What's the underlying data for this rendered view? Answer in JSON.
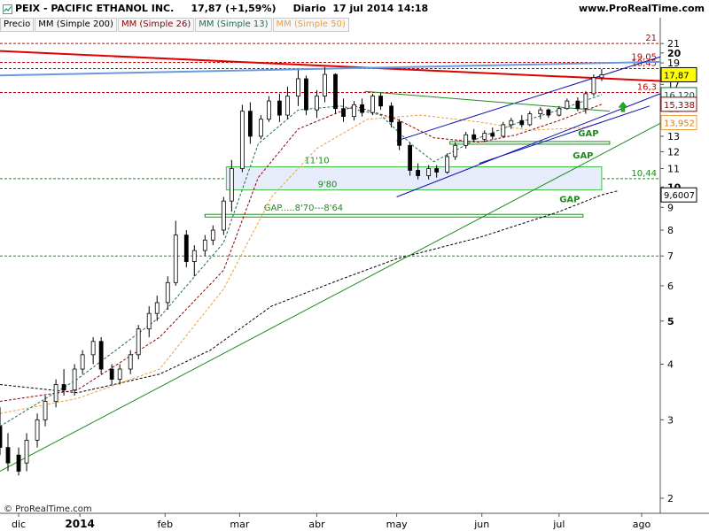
{
  "header": {
    "ticker_line": "PEIX - PACIFIC ETHANOL INC.     17,87 (+1,59%)     Diario  17 jul 2014 14:18",
    "site": "www.ProRealTime.com",
    "copyright": "© ProRealTime.com"
  },
  "legend": [
    {
      "label": "Precio",
      "color": "#000000"
    },
    {
      "label": "MM (Simple 200)",
      "color": "#000000"
    },
    {
      "label": "MM (Simple 26)",
      "color": "#8b0000"
    },
    {
      "label": "MM (Simple 13)",
      "color": "#1f6f4a"
    },
    {
      "label": "MM (Simple 50)",
      "color": "#e8a040"
    }
  ],
  "colors": {
    "candle_up": "#ffffff",
    "candle_down": "#000000",
    "resistance_red": "#e00000",
    "trend_blue": "#6a9ae0",
    "channel_navy": "#1010b0",
    "support_green": "#1e8a1e",
    "gap_green": "#1e8a1e",
    "zone_fill": "#e6ecfa",
    "zone_border": "#44bb44",
    "price_box_bg": "#ffff00",
    "up_arrow": "#22aa22"
  },
  "chart_data": {
    "type": "candlestick",
    "title": "PEIX - PACIFIC ETHANOL INC.",
    "last_price": 17.87,
    "change_pct": "+1,59%",
    "timeframe": "Diario",
    "date": "17 jul 2014 14:18",
    "y_scale": "log",
    "ylim": [
      1.85,
      24
    ],
    "x_range": [
      "2013-12-03",
      "2014-08-08"
    ],
    "x_tick_labels": [
      {
        "date": "2013-12-10",
        "label": "dic"
      },
      {
        "date": "2014-01-02",
        "label": "2014"
      },
      {
        "date": "2014-02-03",
        "label": "feb"
      },
      {
        "date": "2014-03-03",
        "label": "mar"
      },
      {
        "date": "2014-04-01",
        "label": "abr"
      },
      {
        "date": "2014-05-01",
        "label": "may"
      },
      {
        "date": "2014-06-02",
        "label": "jun"
      },
      {
        "date": "2014-07-01",
        "label": "jul"
      },
      {
        "date": "2014-08-01",
        "label": "ago"
      }
    ],
    "y_ticks": [
      2,
      3,
      4,
      5,
      6,
      7,
      8,
      9,
      10,
      11,
      12,
      13,
      14,
      15,
      16,
      17,
      18,
      19,
      20,
      21
    ],
    "y_ticks_bold": [
      5,
      10,
      15,
      20
    ],
    "ma_200": [
      [
        "2013-12-03",
        3.6
      ],
      [
        "2014-01-01",
        3.45
      ],
      [
        "2014-02-01",
        3.8
      ],
      [
        "2014-02-20",
        4.3
      ],
      [
        "2014-03-15",
        5.4
      ],
      [
        "2014-04-10",
        6.2
      ],
      [
        "2014-05-01",
        6.9
      ],
      [
        "2014-06-01",
        7.7
      ],
      [
        "2014-07-01",
        8.8
      ],
      [
        "2014-07-17",
        9.6
      ]
    ],
    "ma_26": [
      [
        "2013-12-03",
        3.3
      ],
      [
        "2014-01-01",
        3.5
      ],
      [
        "2014-02-01",
        4.6
      ],
      [
        "2014-02-25",
        6.5
      ],
      [
        "2014-03-10",
        10.5
      ],
      [
        "2014-03-25",
        13.5
      ],
      [
        "2014-04-15",
        15.2
      ],
      [
        "2014-05-01",
        14.2
      ],
      [
        "2014-05-15",
        12.9
      ],
      [
        "2014-06-01",
        12.6
      ],
      [
        "2014-06-15",
        13.1
      ],
      [
        "2014-07-01",
        14.1
      ],
      [
        "2014-07-17",
        15.338
      ]
    ],
    "ma_13": [
      [
        "2013-12-03",
        2.9
      ],
      [
        "2014-01-01",
        3.7
      ],
      [
        "2014-02-01",
        5.1
      ],
      [
        "2014-02-25",
        7.5
      ],
      [
        "2014-03-10",
        12.5
      ],
      [
        "2014-03-25",
        14.9
      ],
      [
        "2014-04-10",
        15.2
      ],
      [
        "2014-04-25",
        14.5
      ],
      [
        "2014-05-07",
        12.4
      ],
      [
        "2014-05-15",
        11.4
      ],
      [
        "2014-06-01",
        12.9
      ],
      [
        "2014-06-15",
        13.9
      ],
      [
        "2014-07-01",
        14.9
      ],
      [
        "2014-07-17",
        16.12
      ]
    ],
    "ma_50": [
      [
        "2013-12-03",
        3.1
      ],
      [
        "2014-01-01",
        3.35
      ],
      [
        "2014-02-01",
        3.9
      ],
      [
        "2014-02-25",
        5.9
      ],
      [
        "2014-03-15",
        9.5
      ],
      [
        "2014-04-01",
        12.2
      ],
      [
        "2014-04-20",
        14.2
      ],
      [
        "2014-05-10",
        14.5
      ],
      [
        "2014-06-01",
        14.0
      ],
      [
        "2014-06-20",
        13.4
      ],
      [
        "2014-07-10",
        13.6
      ],
      [
        "2014-07-17",
        13.952
      ]
    ],
    "candles_key": [
      "date",
      "open",
      "high",
      "low",
      "close"
    ],
    "candles": [
      [
        "2013-12-03",
        2.9,
        3.2,
        2.5,
        2.6
      ],
      [
        "2013-12-06",
        2.6,
        2.8,
        2.3,
        2.4
      ],
      [
        "2013-12-10",
        2.5,
        2.6,
        2.25,
        2.3
      ],
      [
        "2013-12-13",
        2.4,
        2.8,
        2.3,
        2.7
      ],
      [
        "2013-12-17",
        2.7,
        3.1,
        2.6,
        3.0
      ],
      [
        "2013-12-20",
        3.0,
        3.4,
        2.9,
        3.3
      ],
      [
        "2013-12-24",
        3.3,
        3.7,
        3.2,
        3.6
      ],
      [
        "2013-12-27",
        3.6,
        3.9,
        3.4,
        3.5
      ],
      [
        "2013-12-31",
        3.5,
        4.0,
        3.4,
        3.9
      ],
      [
        "2014-01-03",
        3.9,
        4.3,
        3.8,
        4.2
      ],
      [
        "2014-01-07",
        4.2,
        4.6,
        4.0,
        4.5
      ],
      [
        "2014-01-10",
        4.5,
        4.6,
        3.8,
        3.9
      ],
      [
        "2014-01-14",
        3.9,
        4.0,
        3.6,
        3.7
      ],
      [
        "2014-01-17",
        3.7,
        4.0,
        3.6,
        3.9
      ],
      [
        "2014-01-21",
        3.9,
        4.3,
        3.8,
        4.2
      ],
      [
        "2014-01-24",
        4.2,
        4.9,
        4.1,
        4.8
      ],
      [
        "2014-01-28",
        4.8,
        5.4,
        4.6,
        5.2
      ],
      [
        "2014-01-31",
        5.2,
        5.7,
        5.0,
        5.5
      ],
      [
        "2014-02-04",
        5.5,
        6.3,
        5.3,
        6.1
      ],
      [
        "2014-02-07",
        6.1,
        8.4,
        6.0,
        7.8
      ],
      [
        "2014-02-11",
        7.8,
        8.0,
        6.6,
        6.8
      ],
      [
        "2014-02-14",
        6.8,
        7.4,
        6.3,
        7.2
      ],
      [
        "2014-02-18",
        7.2,
        7.8,
        7.0,
        7.6
      ],
      [
        "2014-02-21",
        7.6,
        8.2,
        7.4,
        8.0
      ],
      [
        "2014-02-25",
        8.0,
        9.5,
        7.8,
        9.3
      ],
      [
        "2014-02-28",
        9.3,
        11.5,
        8.8,
        11.0
      ],
      [
        "2014-03-04",
        11.0,
        15.3,
        10.8,
        14.8
      ],
      [
        "2014-03-07",
        14.8,
        15.5,
        12.5,
        13.0
      ],
      [
        "2014-03-11",
        13.0,
        14.5,
        12.8,
        14.2
      ],
      [
        "2014-03-14",
        14.2,
        16.0,
        14.0,
        15.6
      ],
      [
        "2014-03-18",
        15.6,
        16.2,
        14.0,
        14.5
      ],
      [
        "2014-03-21",
        14.5,
        16.8,
        14.2,
        16.0
      ],
      [
        "2014-03-25",
        16.0,
        18.3,
        15.2,
        17.5
      ],
      [
        "2014-03-28",
        17.5,
        17.8,
        14.5,
        14.9
      ],
      [
        "2014-04-01",
        14.9,
        16.5,
        14.3,
        16.0
      ],
      [
        "2014-04-04",
        16.0,
        18.6,
        15.5,
        17.9
      ],
      [
        "2014-04-08",
        17.9,
        18.0,
        14.6,
        15.0
      ],
      [
        "2014-04-11",
        15.0,
        15.8,
        14.0,
        14.4
      ],
      [
        "2014-04-15",
        14.4,
        15.6,
        14.1,
        15.3
      ],
      [
        "2014-04-18",
        15.3,
        15.8,
        14.4,
        14.7
      ],
      [
        "2014-04-22",
        14.7,
        16.2,
        14.5,
        16.0
      ],
      [
        "2014-04-25",
        16.0,
        16.3,
        14.9,
        15.2
      ],
      [
        "2014-04-29",
        15.2,
        15.5,
        13.6,
        14.0
      ],
      [
        "2014-05-02",
        14.0,
        14.2,
        12.1,
        12.4
      ],
      [
        "2014-05-06",
        12.4,
        12.6,
        10.6,
        10.9
      ],
      [
        "2014-05-09",
        10.9,
        11.3,
        10.4,
        10.6
      ],
      [
        "2014-05-13",
        10.6,
        11.2,
        10.4,
        11.0
      ],
      [
        "2014-05-16",
        11.0,
        11.2,
        10.5,
        10.8
      ],
      [
        "2014-05-20",
        10.8,
        11.9,
        10.7,
        11.7
      ],
      [
        "2014-05-23",
        11.7,
        12.6,
        11.5,
        12.4
      ],
      [
        "2014-05-27",
        12.4,
        13.3,
        12.2,
        13.1
      ],
      [
        "2014-05-30",
        13.1,
        13.5,
        12.6,
        12.8
      ],
      [
        "2014-06-03",
        12.8,
        13.4,
        12.6,
        13.2
      ],
      [
        "2014-06-06",
        13.2,
        13.6,
        12.8,
        13.0
      ],
      [
        "2014-06-10",
        13.0,
        14.0,
        12.9,
        13.8
      ],
      [
        "2014-06-13",
        13.8,
        14.3,
        13.5,
        14.1
      ],
      [
        "2014-06-17",
        14.1,
        14.5,
        13.6,
        13.8
      ],
      [
        "2014-06-20",
        13.8,
        14.8,
        13.7,
        14.6
      ],
      [
        "2014-06-24",
        14.6,
        15.1,
        14.2,
        14.9
      ],
      [
        "2014-06-27",
        14.9,
        15.0,
        14.3,
        14.5
      ],
      [
        "2014-07-01",
        14.5,
        15.2,
        14.4,
        15.0
      ],
      [
        "2014-07-04",
        15.0,
        15.8,
        14.9,
        15.6
      ],
      [
        "2014-07-08",
        15.6,
        15.9,
        14.8,
        15.0
      ],
      [
        "2014-07-11",
        15.0,
        16.4,
        14.6,
        16.2
      ],
      [
        "2014-07-14",
        16.2,
        17.9,
        16.0,
        17.6
      ],
      [
        "2014-07-17",
        17.6,
        18.4,
        17.3,
        17.87
      ]
    ],
    "h_levels": [
      {
        "value": 21,
        "label": "21",
        "color": "#c00000",
        "style": "dash"
      },
      {
        "value": 19.05,
        "label": "19,05",
        "color": "#c00000",
        "style": "dash"
      },
      {
        "value": 18.45,
        "label": "18,45",
        "color": "#c00000",
        "style": "dash"
      },
      {
        "value": 16.3,
        "label": "16,3",
        "color": "#c00000",
        "style": "dash"
      },
      {
        "value": 10.44,
        "label": "10,44",
        "color": "#1e8a1e",
        "style": "dash"
      },
      {
        "value": 7,
        "label": "",
        "color": "#1e8a1e",
        "style": "dash"
      }
    ],
    "trendlines": [
      {
        "name": "resistance",
        "color": "#e00000",
        "width": 2,
        "from": [
          "2013-12-03",
          20.2
        ],
        "to": [
          "2014-08-08",
          17.3
        ]
      },
      {
        "name": "long-blue",
        "color": "#6a9ae0",
        "width": 2,
        "from": [
          "2013-12-03",
          17.8
        ],
        "to": [
          "2014-08-08",
          19.1
        ]
      },
      {
        "name": "channel-upper",
        "color": "#1010b0",
        "width": 1,
        "from": [
          "2014-05-01",
          12.7
        ],
        "to": [
          "2014-08-08",
          19.6
        ]
      },
      {
        "name": "channel-lower",
        "color": "#1010b0",
        "width": 1,
        "from": [
          "2014-05-01",
          9.5
        ],
        "to": [
          "2014-08-08",
          16.2
        ]
      },
      {
        "name": "channel-lower-2",
        "color": "#1010b0",
        "width": 1,
        "from": [
          "2014-06-01",
          11.3
        ],
        "to": [
          "2014-08-04",
          15.2
        ]
      },
      {
        "name": "falling-green",
        "color": "#1e8a1e",
        "width": 1,
        "from": [
          "2014-04-19",
          16.4
        ],
        "to": [
          "2014-07-20",
          14.8
        ]
      },
      {
        "name": "support-green",
        "color": "#1e8a1e",
        "width": 1,
        "from": [
          "2013-12-03",
          2.3
        ],
        "to": [
          "2014-08-08",
          13.9
        ]
      },
      {
        "name": "ma200-extension",
        "color": "#000000",
        "width": 1,
        "dash": "3,2",
        "from": [
          "2014-07-17",
          9.6
        ],
        "to": [
          "2014-07-23",
          9.8
        ]
      }
    ],
    "zones": [
      {
        "name": "gap-zone",
        "from": [
          "2014-02-26",
          11.1
        ],
        "to": [
          "2014-07-17",
          9.85
        ],
        "label_top": "11'10",
        "label_bottom": "9'80",
        "label_top_date": "2014-04-01",
        "label_bottom_date": "2014-04-05"
      }
    ],
    "gap_boxes": [
      {
        "from": [
          "2014-05-21",
          12.65
        ],
        "to": [
          "2014-07-20",
          12.55
        ],
        "label": "GAP",
        "label_at": [
          "2014-07-12",
          13.0
        ]
      },
      {
        "from": [
          "2014-02-18",
          8.68
        ],
        "to": [
          "2014-07-10",
          8.58
        ],
        "label": "GAP.....8'70---8'64",
        "label_at": [
          "2014-03-27",
          8.85
        ]
      }
    ],
    "annotations": [
      {
        "text": "GAP",
        "at": [
          "2014-07-10",
          11.6
        ],
        "color": "#1e8a1e"
      },
      {
        "text": "GAP",
        "at": [
          "2014-07-05",
          9.25
        ],
        "color": "#1e8a1e"
      }
    ],
    "price_boxes": [
      {
        "value": 17.87,
        "label": "17,87",
        "bg": "#ffff00",
        "border": "#000000",
        "fg": "#000000"
      },
      {
        "value": 16.12,
        "label": "16,120",
        "bg": "#ffffff",
        "border": "#1e6a3a",
        "fg": "#1e4a3a"
      },
      {
        "value": 15.338,
        "label": "15,338",
        "bg": "#ffffff",
        "border": "#8b0000",
        "fg": "#8b0000"
      },
      {
        "value": 13.952,
        "label": "13,952",
        "bg": "#ffffff",
        "border": "#e8a040",
        "fg": "#d08020"
      },
      {
        "value": 9.6007,
        "label": "9,6007",
        "bg": "#ffffff",
        "border": "#000000",
        "fg": "#000000"
      }
    ],
    "up_arrow": {
      "at": [
        "2014-07-25",
        15.1
      ]
    }
  }
}
